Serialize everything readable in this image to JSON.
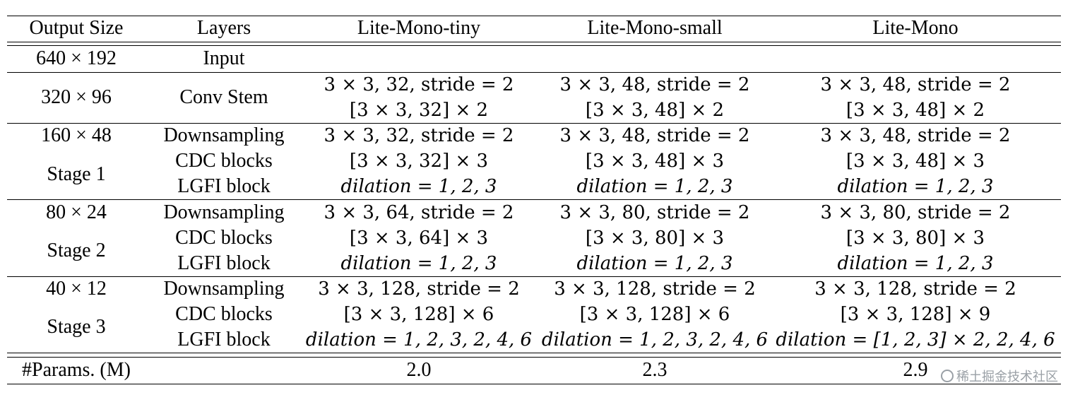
{
  "headers": [
    "Output Size",
    "Layers",
    "Lite-Mono-tiny",
    "Lite-Mono-small",
    "Lite-Mono"
  ],
  "input_row": {
    "size": "640 × 192",
    "layer": "Input"
  },
  "conv_stem": {
    "size": "320 × 96",
    "layer": "Conv Stem",
    "tiny": [
      "3 × 3, 32, stride = 2",
      "[3 × 3, 32] × 2"
    ],
    "small": [
      "3 × 3, 48, stride = 2",
      "[3 × 3, 48] × 2"
    ],
    "base": [
      "3 × 3, 48, stride = 2",
      "[3 × 3, 48] × 2"
    ]
  },
  "stages": [
    {
      "size": "160 × 48",
      "stage": "Stage 1",
      "layers": [
        "Downsampling",
        "CDC blocks",
        "LGFI block"
      ],
      "tiny": [
        "3 × 3, 32, stride = 2",
        "[3 × 3, 32] × 3",
        "dilation = 1, 2, 3"
      ],
      "small": [
        "3 × 3, 48, stride = 2",
        "[3 × 3, 48] × 3",
        "dilation = 1, 2, 3"
      ],
      "base": [
        "3 × 3, 48, stride = 2",
        "[3 × 3, 48] × 3",
        "dilation = 1, 2, 3"
      ]
    },
    {
      "size": "80 × 24",
      "stage": "Stage 2",
      "layers": [
        "Downsampling",
        "CDC blocks",
        "LGFI block"
      ],
      "tiny": [
        "3 × 3, 64, stride = 2",
        "[3 × 3, 64] × 3",
        "dilation = 1, 2, 3"
      ],
      "small": [
        "3 × 3, 80, stride = 2",
        "[3 × 3, 80] × 3",
        "dilation = 1, 2, 3"
      ],
      "base": [
        "3 × 3, 80, stride = 2",
        "[3 × 3, 80] × 3",
        "dilation = 1, 2, 3"
      ]
    },
    {
      "size": "40 × 12",
      "stage": "Stage 3",
      "layers": [
        "Downsampling",
        "CDC blocks",
        "LGFI block"
      ],
      "tiny": [
        "3 × 3, 128, stride = 2",
        "[3 × 3, 128] × 6",
        "dilation = 1, 2, 3, 2, 4, 6"
      ],
      "small": [
        "3 × 3, 128, stride = 2",
        "[3 × 3, 128] × 6",
        "dilation = 1, 2, 3, 2, 4, 6"
      ],
      "base": [
        "3 × 3, 128, stride = 2",
        "[3 × 3, 128] × 9",
        "dilation = [1, 2, 3] × 2, 2, 4, 6"
      ]
    }
  ],
  "params": {
    "label": "#Params. (M)",
    "tiny": "2.0",
    "small": "2.3",
    "base": "2.9"
  },
  "watermark": "稀土掘金技术社区"
}
